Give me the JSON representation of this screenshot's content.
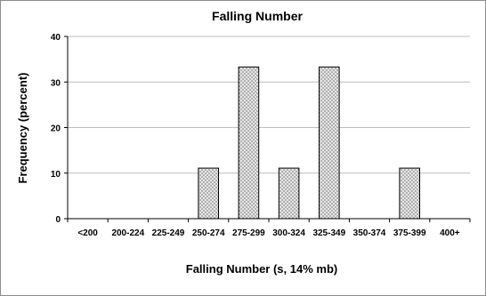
{
  "chart_data": {
    "type": "bar",
    "title": "Falling Number",
    "xlabel": "Falling Number (s, 14% mb)",
    "ylabel": "Frequency (percent)",
    "categories": [
      "<200",
      "200-224",
      "225-249",
      "250-274",
      "275-299",
      "300-324",
      "325-349",
      "350-374",
      "375-399",
      "400+"
    ],
    "values": [
      0,
      0,
      0,
      11.1,
      33.3,
      11.1,
      33.3,
      0,
      11.1,
      0
    ],
    "ylim": [
      0,
      40
    ],
    "yticks": [
      0,
      10,
      20,
      30,
      40
    ],
    "grid": true,
    "legend": "none",
    "bar_fill": "#c8c8c8",
    "bar_pattern": "dotted"
  }
}
